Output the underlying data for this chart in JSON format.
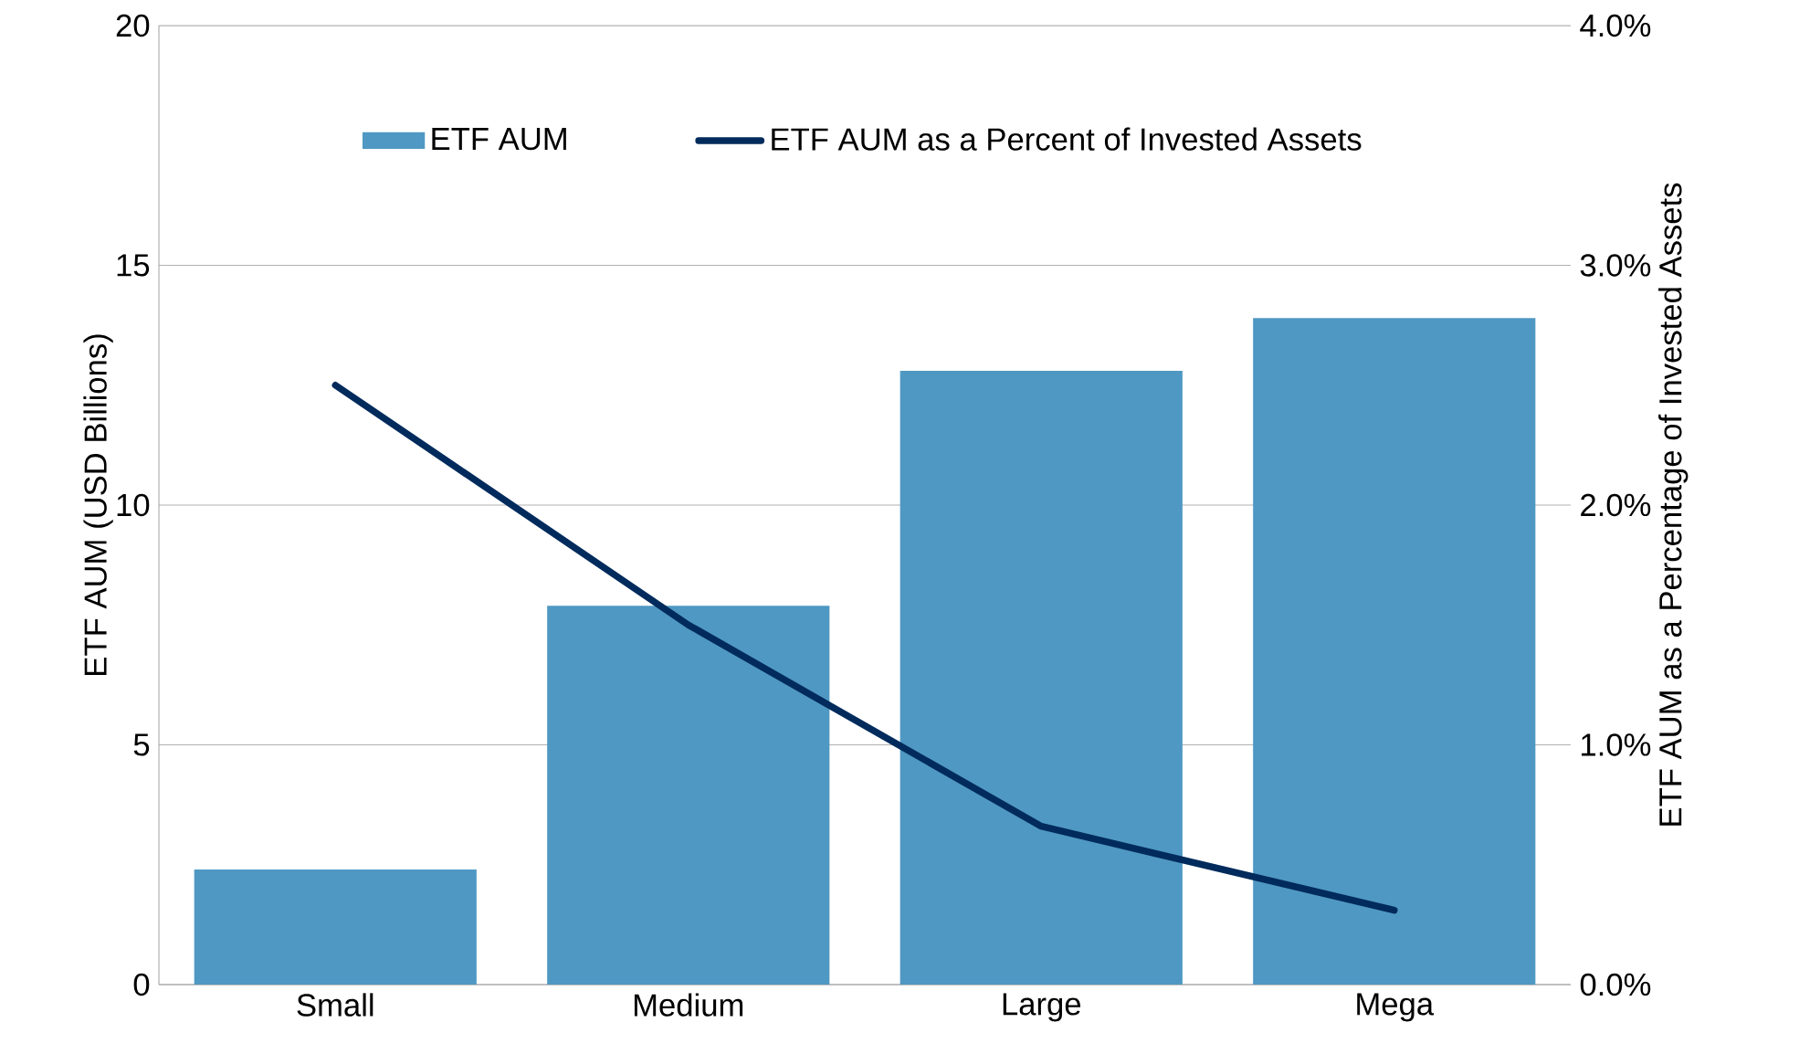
{
  "chart_data": {
    "type": "bar",
    "categories": [
      "Small",
      "Medium",
      "Large",
      "Mega"
    ],
    "ylabel": "ETF AUM (USD Billions)",
    "y2label": "ETF AUM as a Percentage of Invested Assets",
    "series": [
      {
        "name": "ETF AUM",
        "color": "#4f98c3",
        "values": [
          2.4,
          7.9,
          12.8,
          13.9
        ]
      },
      {
        "name": "ETF AUM as a Percent of Invested Assets",
        "type": "line",
        "axis": "y2",
        "color": "#002b5c",
        "values": [
          2.5,
          1.5,
          0.66,
          0.31
        ]
      }
    ],
    "ylim": [
      0,
      20
    ],
    "yticks": [
      0,
      5,
      10,
      15,
      20
    ],
    "y2lim": [
      0,
      4
    ],
    "y2ticks": [
      {
        "value": 0,
        "label": "0.0%"
      },
      {
        "value": 1,
        "label": "1.0%"
      },
      {
        "value": 2,
        "label": "2.0%"
      },
      {
        "value": 3,
        "label": "3.0%"
      },
      {
        "value": 4,
        "label": "4.0%"
      }
    ],
    "grid": "y",
    "legend": "top"
  }
}
